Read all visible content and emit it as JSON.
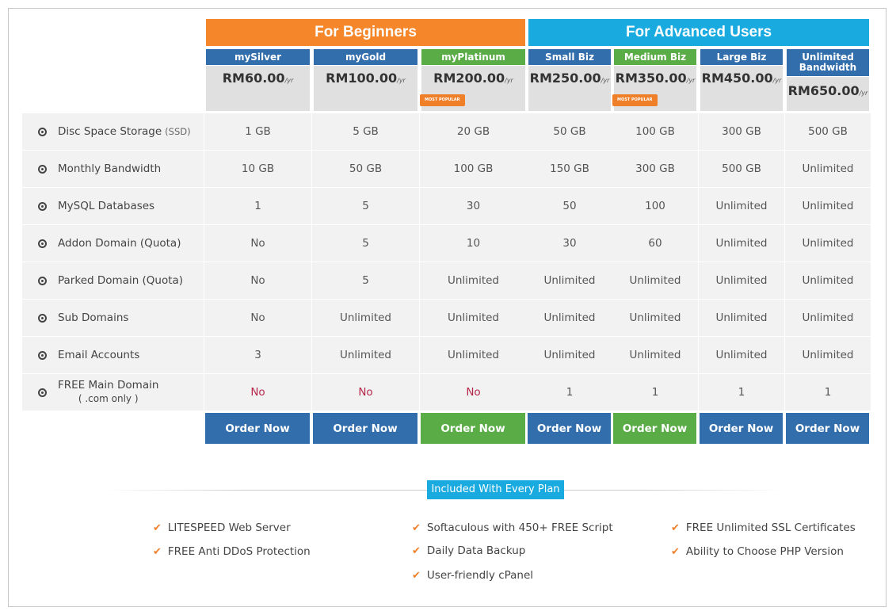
{
  "groups": [
    {
      "label": "For Beginners",
      "color": "#f5862a"
    },
    {
      "label": "For Advanced Users",
      "color": "#19aadf"
    }
  ],
  "plans": [
    {
      "name": "mySilver",
      "price": "RM60.00",
      "per": "/yr",
      "header_color": "#336eac",
      "badge": "",
      "order_label": "Order Now",
      "order_color": "#336eac"
    },
    {
      "name": "myGold",
      "price": "RM100.00",
      "per": "/yr",
      "header_color": "#336eac",
      "badge": "",
      "order_label": "Order Now",
      "order_color": "#336eac"
    },
    {
      "name": "myPlatinum",
      "price": "RM200.00",
      "per": "/yr",
      "header_color": "#5aac47",
      "badge": "MOST POPULAR",
      "order_label": "Order Now",
      "order_color": "#5aac47"
    },
    {
      "name": "Small Biz",
      "price": "RM250.00",
      "per": "/yr",
      "header_color": "#336eac",
      "badge": "",
      "order_label": "Order Now",
      "order_color": "#336eac"
    },
    {
      "name": "Medium Biz",
      "price": "RM350.00",
      "per": "/yr",
      "header_color": "#5aac47",
      "badge": "MOST POPULAR",
      "order_label": "Order Now",
      "order_color": "#5aac47"
    },
    {
      "name": "Large Biz",
      "price": "RM450.00",
      "per": "/yr",
      "header_color": "#336eac",
      "badge": "",
      "order_label": "Order Now",
      "order_color": "#336eac"
    },
    {
      "name": "Unlimited Bandwidth",
      "price": "RM650.00",
      "per": "/yr",
      "header_color": "#336eac",
      "badge": "",
      "order_label": "Order Now",
      "order_color": "#336eac"
    }
  ],
  "features": [
    {
      "label": "Disc Space Storage",
      "suffix": "(SSD)",
      "values": [
        "1 GB",
        "5 GB",
        "20 GB",
        "50 GB",
        "100 GB",
        "300 GB",
        "500 GB"
      ]
    },
    {
      "label": "Monthly Bandwidth",
      "suffix": "",
      "values": [
        "10 GB",
        "50 GB",
        "100 GB",
        "150 GB",
        "300 GB",
        "500 GB",
        "Unlimited"
      ]
    },
    {
      "label": "MySQL Databases",
      "suffix": "",
      "values": [
        "1",
        "5",
        "30",
        "50",
        "100",
        "Unlimited",
        "Unlimited"
      ]
    },
    {
      "label": "Addon Domain (Quota)",
      "suffix": "",
      "values": [
        "No",
        "5",
        "10",
        "30",
        "60",
        "Unlimited",
        "Unlimited"
      ]
    },
    {
      "label": "Parked Domain (Quota)",
      "suffix": "",
      "values": [
        "No",
        "5",
        "Unlimited",
        "Unlimited",
        "Unlimited",
        "Unlimited",
        "Unlimited"
      ]
    },
    {
      "label": "Sub Domains",
      "suffix": "",
      "values": [
        "No",
        "Unlimited",
        "Unlimited",
        "Unlimited",
        "Unlimited",
        "Unlimited",
        "Unlimited"
      ]
    },
    {
      "label": "Email Accounts",
      "suffix": "",
      "values": [
        "3",
        "Unlimited",
        "Unlimited",
        "Unlimited",
        "Unlimited",
        "Unlimited",
        "Unlimited"
      ]
    },
    {
      "label": "FREE Main Domain",
      "suffix": "( .com only )",
      "values": [
        "No",
        "No",
        "No",
        "1",
        "1",
        "1",
        "1"
      ],
      "red_cells": [
        0,
        1,
        2
      ]
    }
  ],
  "included": {
    "title": "Included With Every Plan",
    "items": [
      "LITESPEED Web Server",
      "FREE Anti DDoS Protection",
      "Softaculous with 450+ FREE Script",
      "Daily Data Backup",
      "User-friendly cPanel",
      "FREE Unlimited SSL Certificates",
      "Ability to Choose PHP Version"
    ]
  },
  "colors": {
    "red_text": "#b5284b",
    "check": "#f07f2a",
    "row_bg": "#f2f2f2"
  }
}
